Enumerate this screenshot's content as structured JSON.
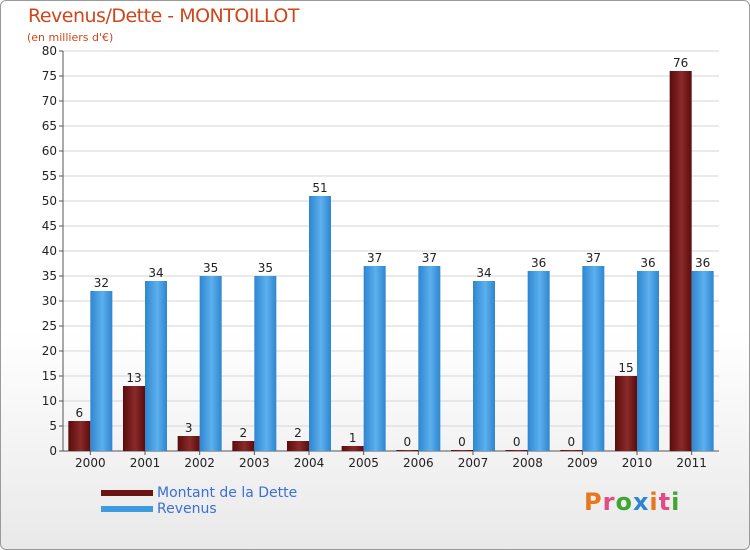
{
  "chart_data": {
    "type": "bar",
    "title": "Revenus/Dette - MONTOILLOT",
    "subtitle": "(en milliers d'€)",
    "categories": [
      "2000",
      "2001",
      "2002",
      "2003",
      "2004",
      "2005",
      "2006",
      "2007",
      "2008",
      "2009",
      "2010",
      "2011"
    ],
    "series": [
      {
        "name": "Montant de la Dette",
        "values": [
          6,
          13,
          3,
          2,
          2,
          1,
          0,
          0,
          0,
          0,
          15,
          76
        ],
        "color": "#7b1a1a"
      },
      {
        "name": "Revenus",
        "values": [
          32,
          34,
          35,
          35,
          51,
          37,
          37,
          34,
          36,
          37,
          36,
          36
        ],
        "color": "#4aa3e6"
      }
    ],
    "ylim": [
      0,
      80
    ],
    "yticks": [
      0,
      5,
      10,
      15,
      20,
      25,
      30,
      35,
      40,
      45,
      50,
      55,
      60,
      65,
      70,
      75,
      80
    ],
    "grid": true,
    "xlabel": "",
    "ylabel": ""
  },
  "logo_text": "Proxiti"
}
